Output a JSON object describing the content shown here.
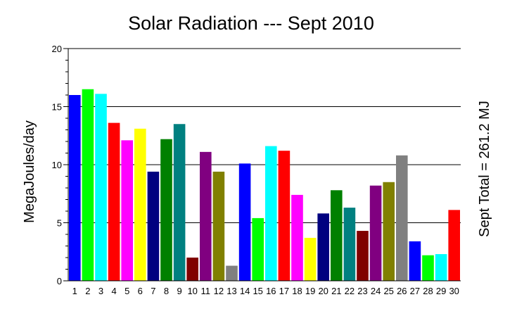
{
  "chart_data": {
    "type": "bar",
    "title": "Solar Radiation --- Sept 2010",
    "ylabel": "MegaJoules/day",
    "right_label": "Sept Total = 261.2 MJ",
    "ylim": [
      0,
      20
    ],
    "yticks": [
      0,
      5,
      10,
      15,
      20
    ],
    "grid": true,
    "categories": [
      "1",
      "2",
      "3",
      "4",
      "5",
      "6",
      "7",
      "8",
      "9",
      "10",
      "11",
      "12",
      "13",
      "14",
      "15",
      "16",
      "17",
      "18",
      "19",
      "20",
      "21",
      "22",
      "23",
      "24",
      "25",
      "26",
      "27",
      "28",
      "29",
      "30"
    ],
    "values": [
      16.0,
      16.5,
      16.1,
      13.6,
      12.1,
      13.1,
      9.4,
      12.2,
      13.5,
      2.0,
      11.1,
      9.4,
      1.3,
      10.1,
      5.4,
      11.6,
      11.2,
      7.4,
      3.7,
      5.8,
      7.8,
      6.3,
      4.3,
      8.2,
      8.5,
      10.8,
      3.4,
      2.2,
      2.3,
      6.1
    ],
    "colors": [
      "#0000ff",
      "#00ff00",
      "#00ffff",
      "#ff0000",
      "#ff00ff",
      "#ffff00",
      "#000080",
      "#008000",
      "#008080",
      "#800000",
      "#800080",
      "#808000",
      "#808080",
      "#0000ff",
      "#00ff00",
      "#00ffff",
      "#ff0000",
      "#ff00ff",
      "#ffff00",
      "#000080",
      "#008000",
      "#008080",
      "#800000",
      "#800080",
      "#808000",
      "#808080",
      "#0000ff",
      "#00ff00",
      "#00ffff",
      "#ff0000"
    ]
  }
}
